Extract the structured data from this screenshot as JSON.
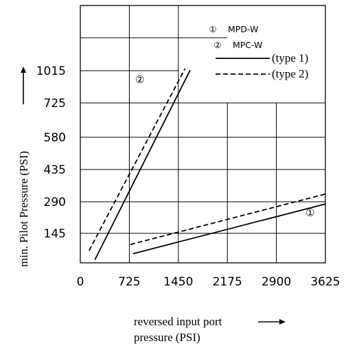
{
  "chart_data": {
    "type": "line",
    "title": "",
    "xlabel": "reversed input port pressure (PSI)",
    "xlabel_lines": [
      "reversed input port",
      "pressure (PSI)"
    ],
    "ylabel": "min. Pilot Pressure (PSI)",
    "x_ticks": [
      "0",
      "725",
      "1450",
      "2175",
      "2900",
      "3625"
    ],
    "y_ticks": [
      "145",
      "290",
      "435",
      "580",
      "725",
      "1015"
    ],
    "xlim": [
      0,
      3625
    ],
    "ylim": [
      0,
      1015
    ],
    "grid": true,
    "legend_position": "top-right",
    "legend_ids": [
      {
        "marker": "①",
        "label": "MPD-W"
      },
      {
        "marker": "②",
        "label": "MPC-W"
      }
    ],
    "legend_styles": [
      {
        "style": "solid",
        "label": "(type 1)"
      },
      {
        "style": "dashed",
        "label": "(type 2)"
      }
    ],
    "series": [
      {
        "marker": "②",
        "style": "solid",
        "x": [
          215,
          1625
        ],
        "y": [
          15,
          1020
        ]
      },
      {
        "marker": "②",
        "style": "dashed",
        "x": [
          130,
          1550
        ],
        "y": [
          60,
          1035
        ]
      },
      {
        "marker": "①",
        "style": "solid",
        "x": [
          780,
          3625
        ],
        "y": [
          45,
          280
        ]
      },
      {
        "marker": "①",
        "style": "dashed",
        "x": [
          740,
          3625
        ],
        "y": [
          90,
          325
        ]
      }
    ],
    "markers": [
      {
        "text": "②",
        "x": 880,
        "y": 935
      },
      {
        "text": "①",
        "x": 3400,
        "y": 240
      }
    ]
  }
}
